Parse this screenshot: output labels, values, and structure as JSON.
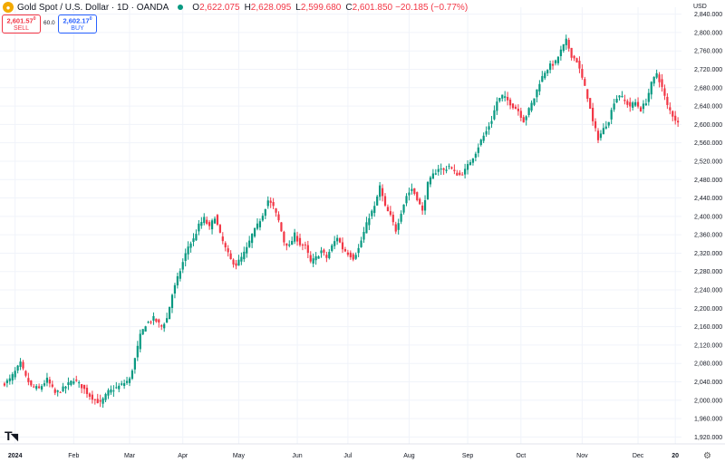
{
  "header": {
    "symbol_icon": "gold-coin-icon",
    "title": "Gold Spot / U.S. Dollar · 1D · OANDA",
    "status_color": "#089981",
    "open_label": "O",
    "open": "2,622.075",
    "high_label": "H",
    "high": "2,628.095",
    "low_label": "L",
    "low": "2,599.680",
    "close_label": "C",
    "close": "2,601.850",
    "change": "−20.185 (−0.77%)"
  },
  "trade": {
    "sell_price": "2,601.57",
    "sell_sup": "0",
    "sell_label": "SELL",
    "spread": "60.0",
    "buy_price": "2,602.17",
    "buy_sup": "0",
    "buy_label": "BUY"
  },
  "currency": "USD",
  "colors": {
    "up": "#089981",
    "down": "#f23645",
    "grid": "#f0f3fa"
  },
  "chart_data": {
    "type": "candlestick",
    "ylim": [
      1905,
      2855
    ],
    "y_ticks": [
      1920,
      1960,
      2000,
      2040,
      2080,
      2120,
      2160,
      2200,
      2240,
      2280,
      2320,
      2360,
      2400,
      2440,
      2480,
      2520,
      2560,
      2600,
      2640,
      2680,
      2720,
      2760,
      2800,
      2840
    ],
    "y_tick_labels": [
      "1,920.000",
      "1,960.000",
      "2,000.000",
      "2,040.000",
      "2,080.000",
      "2,120.000",
      "2,160.000",
      "2,200.000",
      "2,240.000",
      "2,280.000",
      "2,320.000",
      "2,360.000",
      "2,400.000",
      "2,440.000",
      "2,480.000",
      "2,520.000",
      "2,560.000",
      "2,600.000",
      "2,640.000",
      "2,680.000",
      "2,720.000",
      "2,760.000",
      "2,800.000",
      "2,840.000"
    ],
    "x_ticks": [
      {
        "label": "2024",
        "index": 5,
        "bold": true
      },
      {
        "label": "Feb",
        "index": 27
      },
      {
        "label": "Mar",
        "index": 48
      },
      {
        "label": "Apr",
        "index": 68
      },
      {
        "label": "May",
        "index": 89
      },
      {
        "label": "Jun",
        "index": 111
      },
      {
        "label": "Jul",
        "index": 130
      },
      {
        "label": "Aug",
        "index": 153
      },
      {
        "label": "Sep",
        "index": 175
      },
      {
        "label": "Oct",
        "index": 195
      },
      {
        "label": "Nov",
        "index": 218
      },
      {
        "label": "Dec",
        "index": 239
      },
      {
        "label": "20",
        "index": 253,
        "bold": true
      }
    ],
    "anchors": [
      [
        0,
        2033
      ],
      [
        3,
        2045
      ],
      [
        5,
        2062
      ],
      [
        7,
        2080
      ],
      [
        9,
        2050
      ],
      [
        11,
        2030
      ],
      [
        14,
        2025
      ],
      [
        17,
        2045
      ],
      [
        20,
        2015
      ],
      [
        23,
        2025
      ],
      [
        27,
        2045
      ],
      [
        30,
        2030
      ],
      [
        33,
        2010
      ],
      [
        37,
        1993
      ],
      [
        40,
        2018
      ],
      [
        44,
        2030
      ],
      [
        48,
        2045
      ],
      [
        50,
        2090
      ],
      [
        52,
        2140
      ],
      [
        54,
        2165
      ],
      [
        57,
        2178
      ],
      [
        60,
        2160
      ],
      [
        62,
        2178
      ],
      [
        64,
        2230
      ],
      [
        66,
        2265
      ],
      [
        68,
        2300
      ],
      [
        70,
        2335
      ],
      [
        72,
        2350
      ],
      [
        74,
        2380
      ],
      [
        76,
        2395
      ],
      [
        78,
        2375
      ],
      [
        80,
        2400
      ],
      [
        82,
        2360
      ],
      [
        84,
        2330
      ],
      [
        86,
        2305
      ],
      [
        88,
        2295
      ],
      [
        90,
        2310
      ],
      [
        92,
        2330
      ],
      [
        94,
        2360
      ],
      [
        96,
        2380
      ],
      [
        98,
        2405
      ],
      [
        100,
        2435
      ],
      [
        102,
        2420
      ],
      [
        104,
        2390
      ],
      [
        106,
        2345
      ],
      [
        108,
        2335
      ],
      [
        110,
        2360
      ],
      [
        112,
        2340
      ],
      [
        114,
        2335
      ],
      [
        116,
        2300
      ],
      [
        118,
        2310
      ],
      [
        120,
        2325
      ],
      [
        122,
        2310
      ],
      [
        124,
        2335
      ],
      [
        126,
        2355
      ],
      [
        128,
        2330
      ],
      [
        130,
        2320
      ],
      [
        132,
        2310
      ],
      [
        134,
        2330
      ],
      [
        136,
        2365
      ],
      [
        138,
        2400
      ],
      [
        140,
        2420
      ],
      [
        142,
        2465
      ],
      [
        144,
        2420
      ],
      [
        146,
        2400
      ],
      [
        148,
        2370
      ],
      [
        150,
        2410
      ],
      [
        152,
        2445
      ],
      [
        154,
        2460
      ],
      [
        156,
        2440
      ],
      [
        158,
        2410
      ],
      [
        160,
        2470
      ],
      [
        162,
        2490
      ],
      [
        164,
        2505
      ],
      [
        166,
        2500
      ],
      [
        168,
        2510
      ],
      [
        170,
        2495
      ],
      [
        172,
        2490
      ],
      [
        174,
        2500
      ],
      [
        176,
        2520
      ],
      [
        178,
        2540
      ],
      [
        180,
        2565
      ],
      [
        182,
        2585
      ],
      [
        184,
        2610
      ],
      [
        186,
        2650
      ],
      [
        188,
        2662
      ],
      [
        190,
        2652
      ],
      [
        192,
        2640
      ],
      [
        194,
        2630
      ],
      [
        196,
        2608
      ],
      [
        198,
        2632
      ],
      [
        200,
        2658
      ],
      [
        202,
        2692
      ],
      [
        204,
        2715
      ],
      [
        206,
        2728
      ],
      [
        208,
        2735
      ],
      [
        210,
        2760
      ],
      [
        212,
        2782
      ],
      [
        214,
        2750
      ],
      [
        216,
        2738
      ],
      [
        218,
        2700
      ],
      [
        220,
        2660
      ],
      [
        222,
        2605
      ],
      [
        224,
        2570
      ],
      [
        226,
        2590
      ],
      [
        228,
        2610
      ],
      [
        230,
        2650
      ],
      [
        232,
        2665
      ],
      [
        234,
        2650
      ],
      [
        236,
        2640
      ],
      [
        238,
        2648
      ],
      [
        240,
        2632
      ],
      [
        242,
        2650
      ],
      [
        244,
        2688
      ],
      [
        246,
        2712
      ],
      [
        248,
        2680
      ],
      [
        250,
        2640
      ],
      [
        252,
        2620
      ],
      [
        254,
        2602
      ]
    ]
  }
}
